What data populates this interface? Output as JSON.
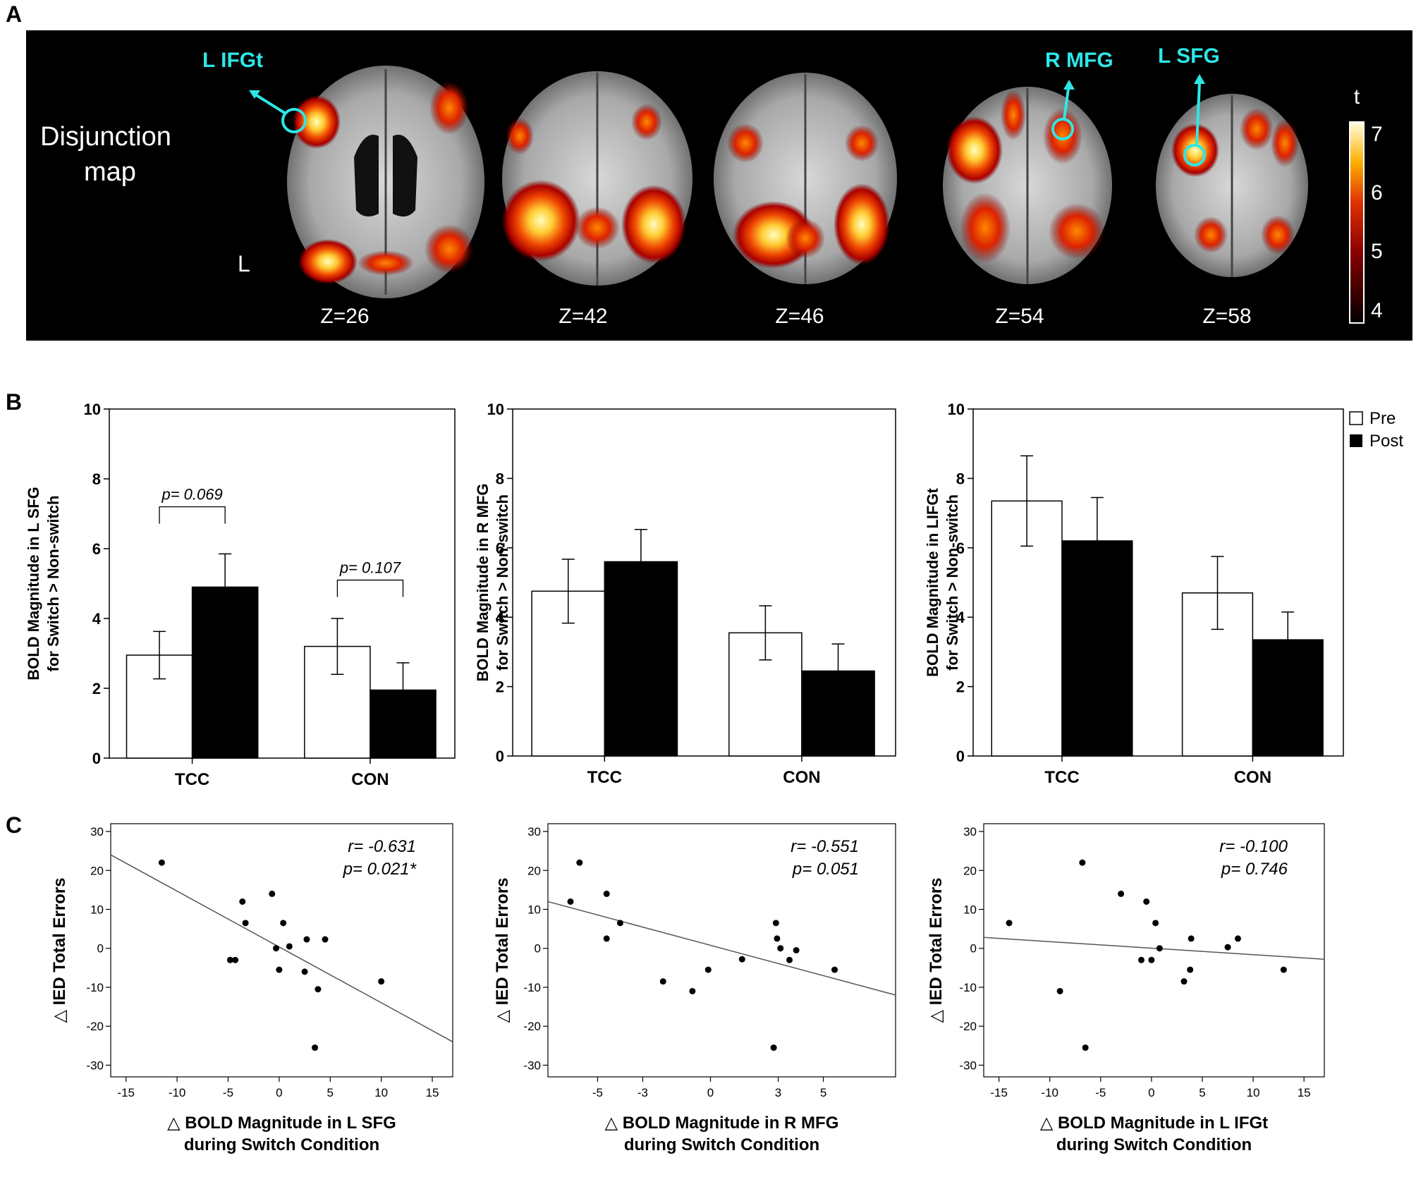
{
  "panels": {
    "a_label": "A",
    "b_label": "B",
    "c_label": "C"
  },
  "panel_a": {
    "title_line1": "Disjunction",
    "title_line2": "map",
    "side_label": "L",
    "slices": [
      "Z=26",
      "Z=42",
      "Z=46",
      "Z=54",
      "Z=58"
    ],
    "roi_labels": [
      "L IFGt",
      "R MFG",
      "L SFG"
    ],
    "colorbar": {
      "title": "t",
      "ticks": [
        "7",
        "6",
        "5",
        "4"
      ],
      "min": 4,
      "max": 7
    },
    "colors": {
      "accent": "#2ee6e6",
      "background": "#000000",
      "hot_high": "#ffffb0",
      "hot_low": "#8a0000"
    }
  },
  "legend": {
    "pre": "Pre",
    "post": "Post"
  },
  "chart_data": [
    {
      "type": "bar",
      "panel": "B",
      "ylabel_line1": "BOLD Magnitude in L SFG",
      "ylabel_line2": "for Switch > Non-switch",
      "categories": [
        "TCC",
        "CON"
      ],
      "series": [
        {
          "name": "Pre",
          "values": [
            2.95,
            3.2
          ],
          "errors": [
            0.68,
            0.8
          ]
        },
        {
          "name": "Post",
          "values": [
            4.9,
            1.95
          ],
          "errors": [
            0.95,
            0.78
          ]
        }
      ],
      "ylim": [
        0,
        10
      ],
      "yticks": [
        "0",
        "2",
        "4",
        "6",
        "8",
        "10"
      ],
      "annotations": [
        {
          "text": "p= 0.069",
          "group": 0,
          "y": 7.2
        },
        {
          "text": "p= 0.107",
          "group": 1,
          "y": 5.1
        }
      ]
    },
    {
      "type": "bar",
      "panel": "B",
      "ylabel_line1": "BOLD Magnitude in R MFG",
      "ylabel_line2": "for Switch > Non-switch",
      "categories": [
        "TCC",
        "CON"
      ],
      "series": [
        {
          "name": "Pre",
          "values": [
            4.75,
            3.55
          ],
          "errors": [
            0.92,
            0.78
          ]
        },
        {
          "name": "Post",
          "values": [
            5.6,
            2.45
          ],
          "errors": [
            0.93,
            0.78
          ]
        }
      ],
      "ylim": [
        0,
        10
      ],
      "yticks": [
        "0",
        "2",
        "4",
        "6",
        "8",
        "10"
      ],
      "annotations": []
    },
    {
      "type": "bar",
      "panel": "B",
      "ylabel_line1": "BOLD Magnitude in LIFGt",
      "ylabel_line2": "for Switch > Non-switch",
      "categories": [
        "TCC",
        "CON"
      ],
      "series": [
        {
          "name": "Pre",
          "values": [
            7.35,
            4.7
          ],
          "errors": [
            1.3,
            1.05
          ]
        },
        {
          "name": "Post",
          "values": [
            6.2,
            3.35
          ],
          "errors": [
            1.25,
            0.8
          ]
        }
      ],
      "ylim": [
        0,
        10
      ],
      "yticks": [
        "0",
        "2",
        "4",
        "6",
        "8",
        "10"
      ],
      "annotations": []
    },
    {
      "type": "scatter",
      "panel": "C",
      "xlabel_line1": "△ BOLD Magnitude in L SFG",
      "xlabel_line2": "during Switch Condition",
      "ylabel": "△ IED Total Errors",
      "stat_r": "r= -0.631",
      "stat_p": "p= 0.021*",
      "xlim": [
        -16.5,
        17
      ],
      "ylim": [
        -33,
        32
      ],
      "xticks": [
        -15,
        -10,
        -5,
        0,
        5,
        10,
        15
      ],
      "xtick_labels": [
        "-15",
        "-10",
        "-5",
        "0",
        "5",
        "10",
        "15"
      ],
      "yticks": [
        30,
        20,
        10,
        0,
        -10,
        -20,
        -30
      ],
      "ytick_labels": [
        "30",
        "20",
        "10",
        "0",
        "-10",
        "-20",
        "-30"
      ],
      "points": [
        [
          -11.5,
          22
        ],
        [
          -4.8,
          -3
        ],
        [
          -4.3,
          -3
        ],
        [
          -3.6,
          12
        ],
        [
          -3.3,
          6.5
        ],
        [
          -0.7,
          14
        ],
        [
          -0.3,
          0
        ],
        [
          0,
          -5.5
        ],
        [
          0.4,
          6.5
        ],
        [
          1,
          0.5
        ],
        [
          2.5,
          -6
        ],
        [
          2.7,
          2.3
        ],
        [
          3.5,
          -25.5
        ],
        [
          3.8,
          -10.5
        ],
        [
          4.5,
          2.3
        ],
        [
          10,
          -8.5
        ]
      ],
      "fit_line": [
        [
          -16.5,
          24
        ],
        [
          17,
          -24
        ]
      ]
    },
    {
      "type": "scatter",
      "panel": "C",
      "xlabel_line1": "△ BOLD Magnitude in R MFG",
      "xlabel_line2": "during Switch Condition",
      "ylabel": "△ IED Total Errors",
      "stat_r": "r= -0.551",
      "stat_p": "p= 0.051",
      "xlim": [
        -7.2,
        8.2
      ],
      "ylim": [
        -33,
        32
      ],
      "xticks": [
        -5,
        -3,
        0,
        3,
        5
      ],
      "xtick_labels": [
        "-5",
        "-3",
        "0",
        "3",
        "5"
      ],
      "yticks": [
        30,
        20,
        10,
        0,
        -10,
        -20,
        -30
      ],
      "ytick_labels": [
        "30",
        "20",
        "10",
        "0",
        "-10",
        "-20",
        "-30"
      ],
      "points": [
        [
          -6.2,
          12
        ],
        [
          -5.8,
          22
        ],
        [
          -4.6,
          14
        ],
        [
          -4.6,
          2.5
        ],
        [
          -4,
          6.5
        ],
        [
          -2.1,
          -8.5
        ],
        [
          -0.8,
          -11
        ],
        [
          -0.1,
          -5.5
        ],
        [
          1.4,
          -2.8
        ],
        [
          2.9,
          6.5
        ],
        [
          2.95,
          2.5
        ],
        [
          3.1,
          0
        ],
        [
          3.5,
          -3
        ],
        [
          3.8,
          -0.5
        ],
        [
          2.8,
          -25.5
        ],
        [
          5.5,
          -5.5
        ]
      ],
      "fit_line": [
        [
          -7.2,
          12
        ],
        [
          8.2,
          -12
        ]
      ]
    },
    {
      "type": "scatter",
      "panel": "C",
      "xlabel_line1": "△ BOLD Magnitude in L IFGt",
      "xlabel_line2": "during Switch Condition",
      "ylabel": "△ IED Total Errors",
      "stat_r": "r= -0.100",
      "stat_p": "p= 0.746",
      "xlim": [
        -16.5,
        17
      ],
      "ylim": [
        -33,
        32
      ],
      "xticks": [
        -15,
        -10,
        -5,
        0,
        5,
        10,
        15
      ],
      "xtick_labels": [
        "-15",
        "-10",
        "-5",
        "0",
        "5",
        "10",
        "15"
      ],
      "yticks": [
        30,
        20,
        10,
        0,
        -10,
        -20,
        -30
      ],
      "ytick_labels": [
        "30",
        "20",
        "10",
        "0",
        "-10",
        "-20",
        "-30"
      ],
      "points": [
        [
          -14,
          6.5
        ],
        [
          -9,
          -11
        ],
        [
          -6.5,
          -25.5
        ],
        [
          -6.8,
          22
        ],
        [
          -3,
          14
        ],
        [
          -1,
          -3
        ],
        [
          -0.5,
          12
        ],
        [
          0,
          -3
        ],
        [
          0.4,
          6.5
        ],
        [
          0.8,
          0
        ],
        [
          3.2,
          -8.5
        ],
        [
          3.8,
          -5.5
        ],
        [
          3.9,
          2.5
        ],
        [
          7.5,
          0.3
        ],
        [
          8.5,
          2.5
        ],
        [
          13,
          -5.5
        ]
      ],
      "fit_line": [
        [
          -16.5,
          2.8
        ],
        [
          17,
          -2.8
        ]
      ]
    }
  ]
}
